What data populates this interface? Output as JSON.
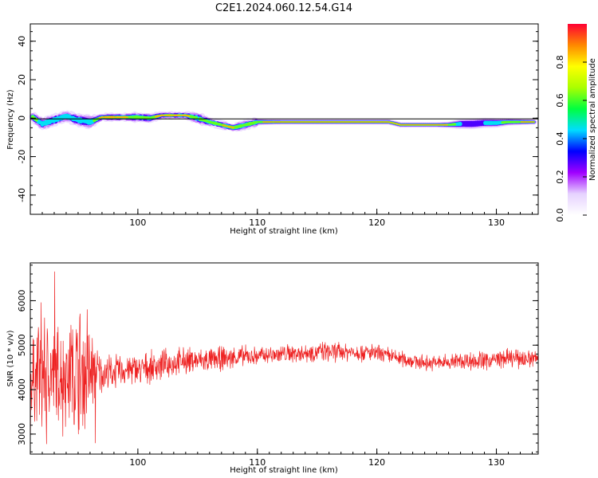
{
  "chart_data": [
    {
      "type": "heatmap",
      "title": "C2E1.2024.060.12.54.G14",
      "xlabel": "Height of straight line (km)",
      "ylabel": "Frequency (Hz)",
      "xlim": [
        91,
        133.5
      ],
      "ylim": [
        -50,
        49
      ],
      "xticks": [
        "100",
        "110",
        "120",
        "130"
      ],
      "xtick_values": [
        100,
        110,
        120,
        130
      ],
      "yticks": [
        "40",
        "20",
        "0",
        "-20",
        "-40"
      ],
      "ytick_values": [
        40,
        20,
        0,
        -20,
        -40
      ],
      "colorbar": {
        "label": "Normalized spectral amplitude",
        "ticks": [
          "0.0",
          "0.2",
          "0.4",
          "0.6",
          "0.8"
        ],
        "tick_values": [
          0.0,
          0.2,
          0.4,
          0.6,
          0.8
        ],
        "range": [
          0,
          1
        ],
        "colormap": [
          "#ffffff",
          "#e6d2ff",
          "#a000ff",
          "#0000ff",
          "#00ddff",
          "#00ff40",
          "#aaff00",
          "#ffff00",
          "#ff8800",
          "#ff0033"
        ]
      },
      "ridge": {
        "x": [
          91,
          92,
          93,
          94,
          95,
          96,
          97,
          98,
          99,
          100,
          101,
          102,
          103,
          104,
          105,
          106,
          107,
          108,
          109,
          110,
          111,
          112,
          113,
          114,
          115,
          116,
          117,
          118,
          119,
          120,
          121,
          122,
          123,
          124,
          125,
          126,
          127,
          128,
          129,
          130,
          131,
          132,
          133
        ],
        "frequency": [
          1.5,
          -3,
          -1,
          1,
          -1,
          -2,
          0.5,
          0.5,
          0.5,
          0.5,
          0,
          1.5,
          1.5,
          1.5,
          0,
          -2,
          -3.5,
          -5,
          -3.5,
          -2,
          -2,
          -2,
          -2,
          -2,
          -2,
          -2,
          -2,
          -2,
          -2,
          -2,
          -2,
          -3.5,
          -3.5,
          -3.5,
          -3.5,
          -3.5,
          -3,
          -3,
          -2.5,
          -2.5,
          -2,
          -2,
          -2
        ],
        "amplitude": [
          0.75,
          0.55,
          0.55,
          0.6,
          0.55,
          0.5,
          0.95,
          0.85,
          0.9,
          0.7,
          0.75,
          0.95,
          0.95,
          0.95,
          0.6,
          0.8,
          0.85,
          0.85,
          0.7,
          0.8,
          0.9,
          0.95,
          0.95,
          0.95,
          0.95,
          0.95,
          0.95,
          0.95,
          0.95,
          0.95,
          0.95,
          0.95,
          0.95,
          0.95,
          0.95,
          0.85,
          0.45,
          0.4,
          0.45,
          0.5,
          0.75,
          0.85,
          0.95
        ]
      }
    },
    {
      "type": "line",
      "xlabel": "Height of straight line (km)",
      "ylabel": "SNR (10 * v/v)",
      "xlim": [
        91,
        133.5
      ],
      "ylim": [
        2550,
        6850
      ],
      "xticks": [
        "100",
        "110",
        "120",
        "130"
      ],
      "xtick_values": [
        100,
        110,
        120,
        130
      ],
      "yticks": [
        "6000",
        "5000",
        "4000",
        "3000"
      ],
      "ytick_values": [
        6000,
        5000,
        4000,
        3000
      ],
      "color": "#ee2222",
      "series": [
        {
          "x": [
            91,
            91.5,
            92,
            92.5,
            93,
            93.5,
            94,
            94.5,
            95,
            95.5,
            96,
            96.5,
            97,
            98,
            99,
            100,
            101,
            102,
            103,
            104,
            105,
            106,
            107,
            108,
            109,
            110,
            111,
            112,
            113,
            114,
            115,
            116,
            117,
            118,
            119,
            120,
            121,
            122,
            123,
            124,
            125,
            126,
            127,
            128,
            129,
            130,
            131,
            132,
            133,
            133.5
          ],
          "mean": [
            4150,
            4300,
            4400,
            4350,
            4300,
            4350,
            4350,
            4300,
            4350,
            4350,
            4350,
            4400,
            4350,
            4400,
            4450,
            4450,
            4500,
            4550,
            4600,
            4650,
            4650,
            4650,
            4700,
            4720,
            4750,
            4750,
            4780,
            4800,
            4820,
            4830,
            4850,
            4850,
            4850,
            4850,
            4840,
            4800,
            4750,
            4700,
            4650,
            4600,
            4600,
            4620,
            4650,
            4650,
            4650,
            4680,
            4700,
            4700,
            4700,
            4700
          ],
          "noise_amplitude": [
            1300,
            1100,
            2000,
            1400,
            1300,
            1400,
            1300,
            1400,
            2000,
            1500,
            1400,
            700,
            500,
            450,
            420,
            420,
            400,
            400,
            380,
            360,
            340,
            330,
            320,
            300,
            280,
            250,
            250,
            250,
            260,
            260,
            260,
            260,
            260,
            250,
            250,
            250,
            240,
            220,
            210,
            200,
            210,
            230,
            250,
            260,
            260,
            260,
            250,
            250,
            250,
            250
          ],
          "extrema": [
            2600,
            5400,
            2780,
            6650,
            2950,
            5450,
            3100,
            5800,
            2800,
            6850,
            2900,
            5800,
            3000,
            5600,
            2850
          ]
        }
      ]
    }
  ]
}
